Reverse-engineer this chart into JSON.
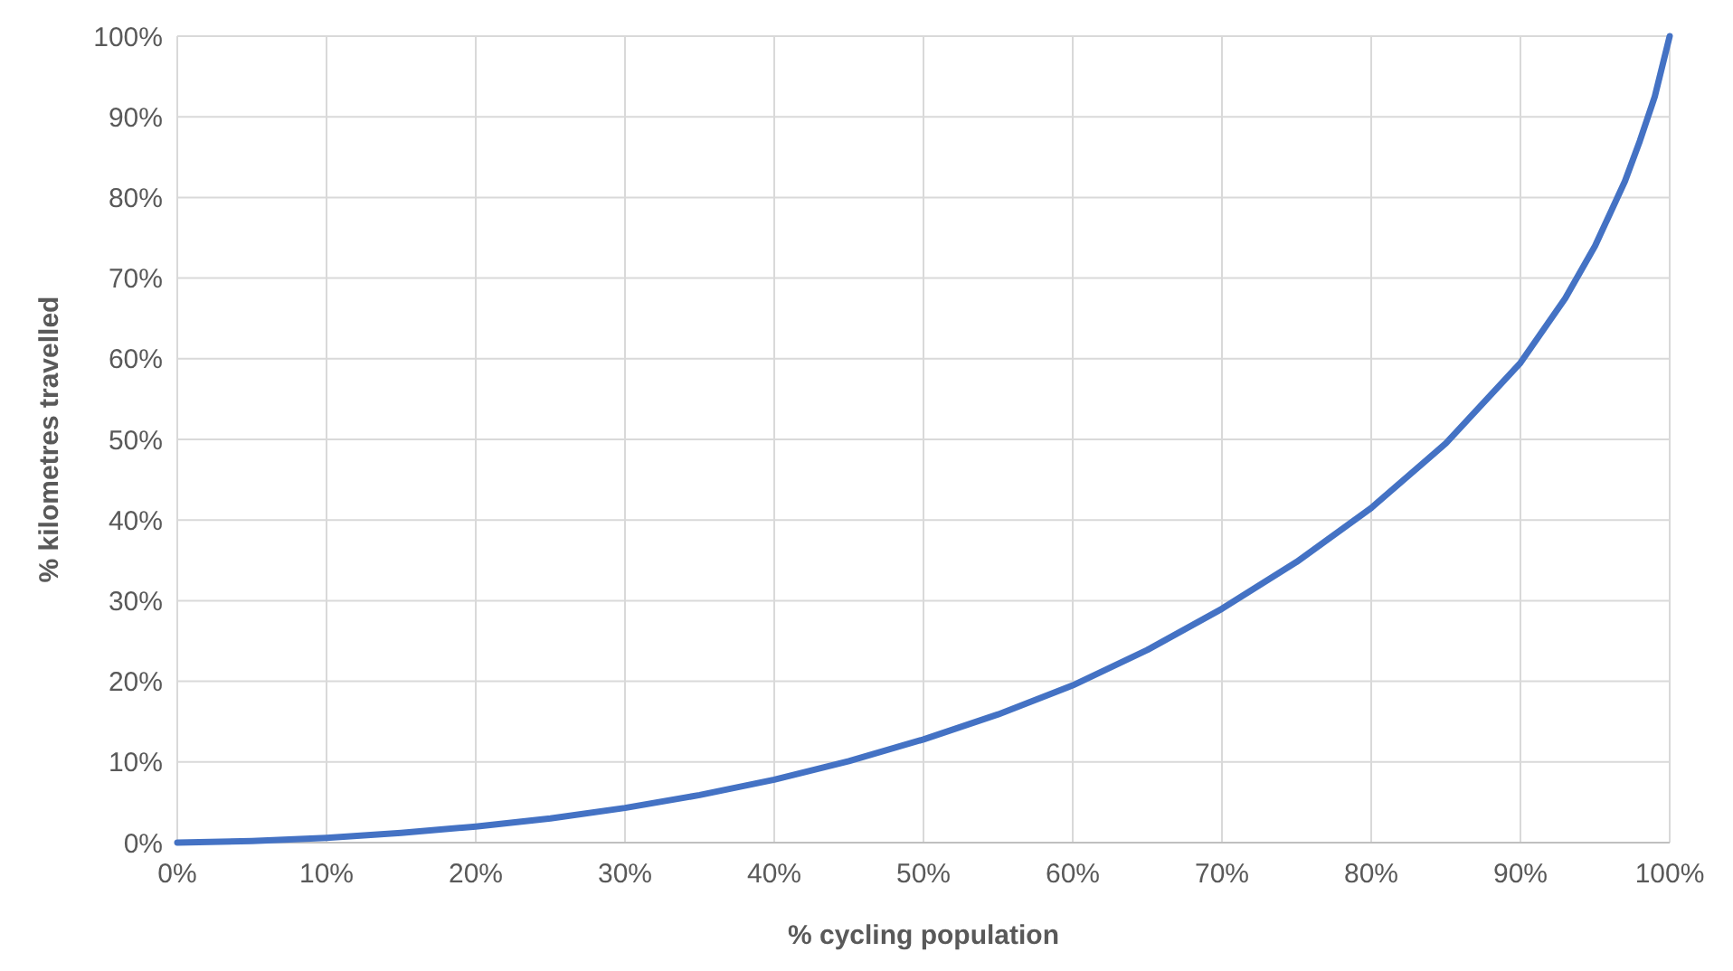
{
  "chart_data": {
    "type": "line",
    "xlabel": "% cycling population",
    "ylabel": "% kilometres travelled",
    "x": [
      0,
      5,
      10,
      15,
      20,
      25,
      30,
      35,
      40,
      45,
      50,
      55,
      60,
      65,
      70,
      75,
      80,
      85,
      90,
      93,
      95,
      97,
      98,
      99,
      100
    ],
    "series": [
      {
        "color": "#4472c4",
        "values": [
          0,
          0.2,
          0.6,
          1.2,
          2,
          3,
          4.3,
          5.9,
          7.8,
          10.1,
          12.8,
          15.9,
          19.5,
          23.9,
          29,
          34.8,
          41.5,
          49.5,
          59.5,
          67.5,
          74,
          82,
          87,
          92.5,
          100
        ]
      }
    ],
    "xlim": [
      0,
      100
    ],
    "ylim": [
      0,
      100
    ],
    "xticks": [
      {
        "value": 0,
        "label": "0%"
      },
      {
        "value": 10,
        "label": "10%"
      },
      {
        "value": 20,
        "label": "20%"
      },
      {
        "value": 30,
        "label": "30%"
      },
      {
        "value": 40,
        "label": "40%"
      },
      {
        "value": 50,
        "label": "50%"
      },
      {
        "value": 60,
        "label": "60%"
      },
      {
        "value": 70,
        "label": "70%"
      },
      {
        "value": 80,
        "label": "80%"
      },
      {
        "value": 90,
        "label": "90%"
      },
      {
        "value": 100,
        "label": "100%"
      }
    ],
    "yticks": [
      {
        "value": 0,
        "label": "0%"
      },
      {
        "value": 10,
        "label": "10%"
      },
      {
        "value": 20,
        "label": "20%"
      },
      {
        "value": 30,
        "label": "30%"
      },
      {
        "value": 40,
        "label": "40%"
      },
      {
        "value": 50,
        "label": "50%"
      },
      {
        "value": 60,
        "label": "60%"
      },
      {
        "value": 70,
        "label": "70%"
      },
      {
        "value": 80,
        "label": "80%"
      },
      {
        "value": 90,
        "label": "90%"
      },
      {
        "value": 100,
        "label": "100%"
      }
    ],
    "grid": true,
    "marker": "none",
    "line_style": "solid"
  }
}
